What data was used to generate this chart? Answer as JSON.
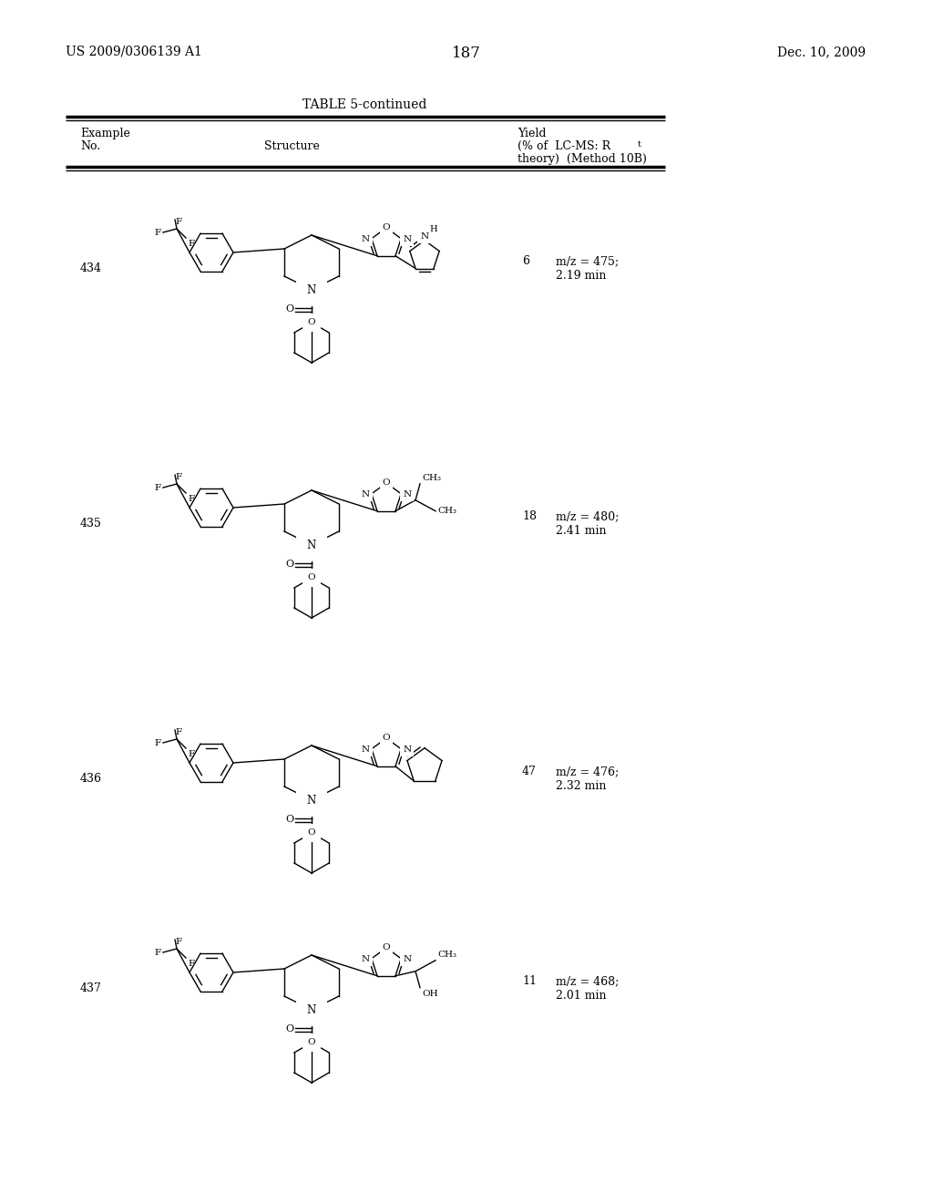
{
  "page_number": "187",
  "patent_number": "US 2009/0306139 A1",
  "patent_date": "Dec. 10, 2009",
  "table_title": "TABLE 5-continued",
  "rows": [
    {
      "example": "434",
      "yield": "6",
      "lcms": "m/z = 475;\n2.19 min"
    },
    {
      "example": "435",
      "yield": "18",
      "lcms": "m/z = 480;\n2.41 min"
    },
    {
      "example": "436",
      "yield": "47",
      "lcms": "m/z = 476;\n2.32 min"
    },
    {
      "example": "437",
      "yield": "11",
      "lcms": "m/z = 468;\n2.01 min"
    }
  ],
  "bg_color": "#ffffff",
  "text_color": "#000000"
}
